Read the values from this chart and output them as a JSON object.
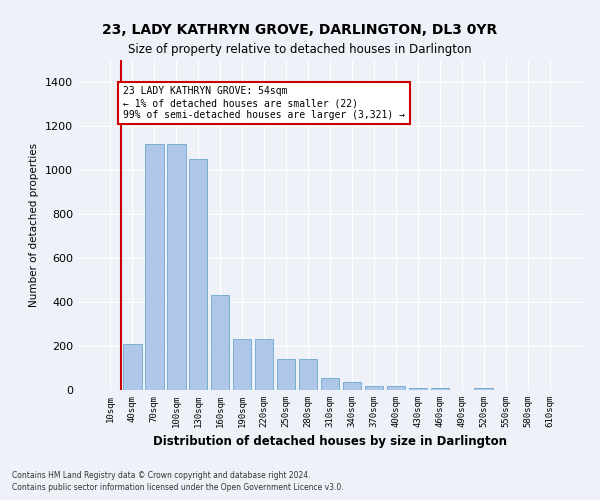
{
  "title": "23, LADY KATHRYN GROVE, DARLINGTON, DL3 0YR",
  "subtitle": "Size of property relative to detached houses in Darlington",
  "xlabel": "Distribution of detached houses by size in Darlington",
  "ylabel": "Number of detached properties",
  "bar_color": "#aec6e8",
  "bar_edge_color": "#5a9ec8",
  "vline_color": "#cc0000",
  "vline_x_index": 1,
  "categories": [
    "10sqm",
    "40sqm",
    "70sqm",
    "100sqm",
    "130sqm",
    "160sqm",
    "190sqm",
    "220sqm",
    "250sqm",
    "280sqm",
    "310sqm",
    "340sqm",
    "370sqm",
    "400sqm",
    "430sqm",
    "460sqm",
    "490sqm",
    "520sqm",
    "550sqm",
    "580sqm",
    "610sqm"
  ],
  "values": [
    0,
    210,
    1120,
    1120,
    1050,
    430,
    230,
    230,
    140,
    140,
    55,
    35,
    20,
    20,
    10,
    10,
    0,
    10,
    0,
    0,
    0
  ],
  "ylim": [
    0,
    1500
  ],
  "yticks": [
    0,
    200,
    400,
    600,
    800,
    1000,
    1200,
    1400
  ],
  "annotation_text": "23 LADY KATHRYN GROVE: 54sqm\n← 1% of detached houses are smaller (22)\n99% of semi-detached houses are larger (3,321) →",
  "annotation_box_color": "#ffffff",
  "annotation_box_edge": "#cc0000",
  "bg_color": "#eef2f8",
  "plot_bg_color": "#eef2f8",
  "footer1": "Contains HM Land Registry data © Crown copyright and database right 2024.",
  "footer2": "Contains public sector information licensed under the Open Government Licence v3.0."
}
